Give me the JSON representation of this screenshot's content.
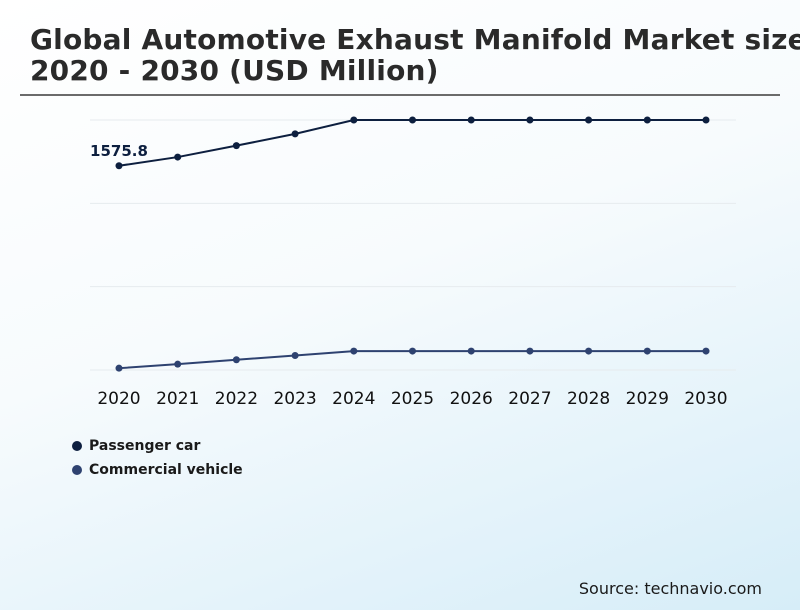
{
  "title_line1": "Global Automotive Exhaust Manifold Market size",
  "title_line2": "2020 - 2030 (USD Million)",
  "source": "Source: technavio.com",
  "chart_data": {
    "type": "line",
    "x": [
      "2020",
      "2021",
      "2022",
      "2023",
      "2024",
      "2025",
      "2026",
      "2027",
      "2028",
      "2029",
      "2030"
    ],
    "series": [
      {
        "name": "Passenger car",
        "color": "#0d1f3f",
        "values": [
          1575.8,
          1643,
          1731,
          1822,
          1929,
          1929,
          1929,
          1929,
          1929,
          1929,
          1929
        ]
      },
      {
        "name": "Commercial vehicle",
        "color": "#2e4270",
        "values": [
          14,
          45,
          79,
          112,
          146,
          146,
          146,
          146,
          146,
          146,
          146
        ]
      }
    ],
    "ylim": [
      0,
      1929
    ],
    "grid": true,
    "gridlines": 4,
    "data_labels": [
      {
        "series": 0,
        "index": 0,
        "text": "1575.8"
      }
    ],
    "legend_position": "bottom-left"
  }
}
